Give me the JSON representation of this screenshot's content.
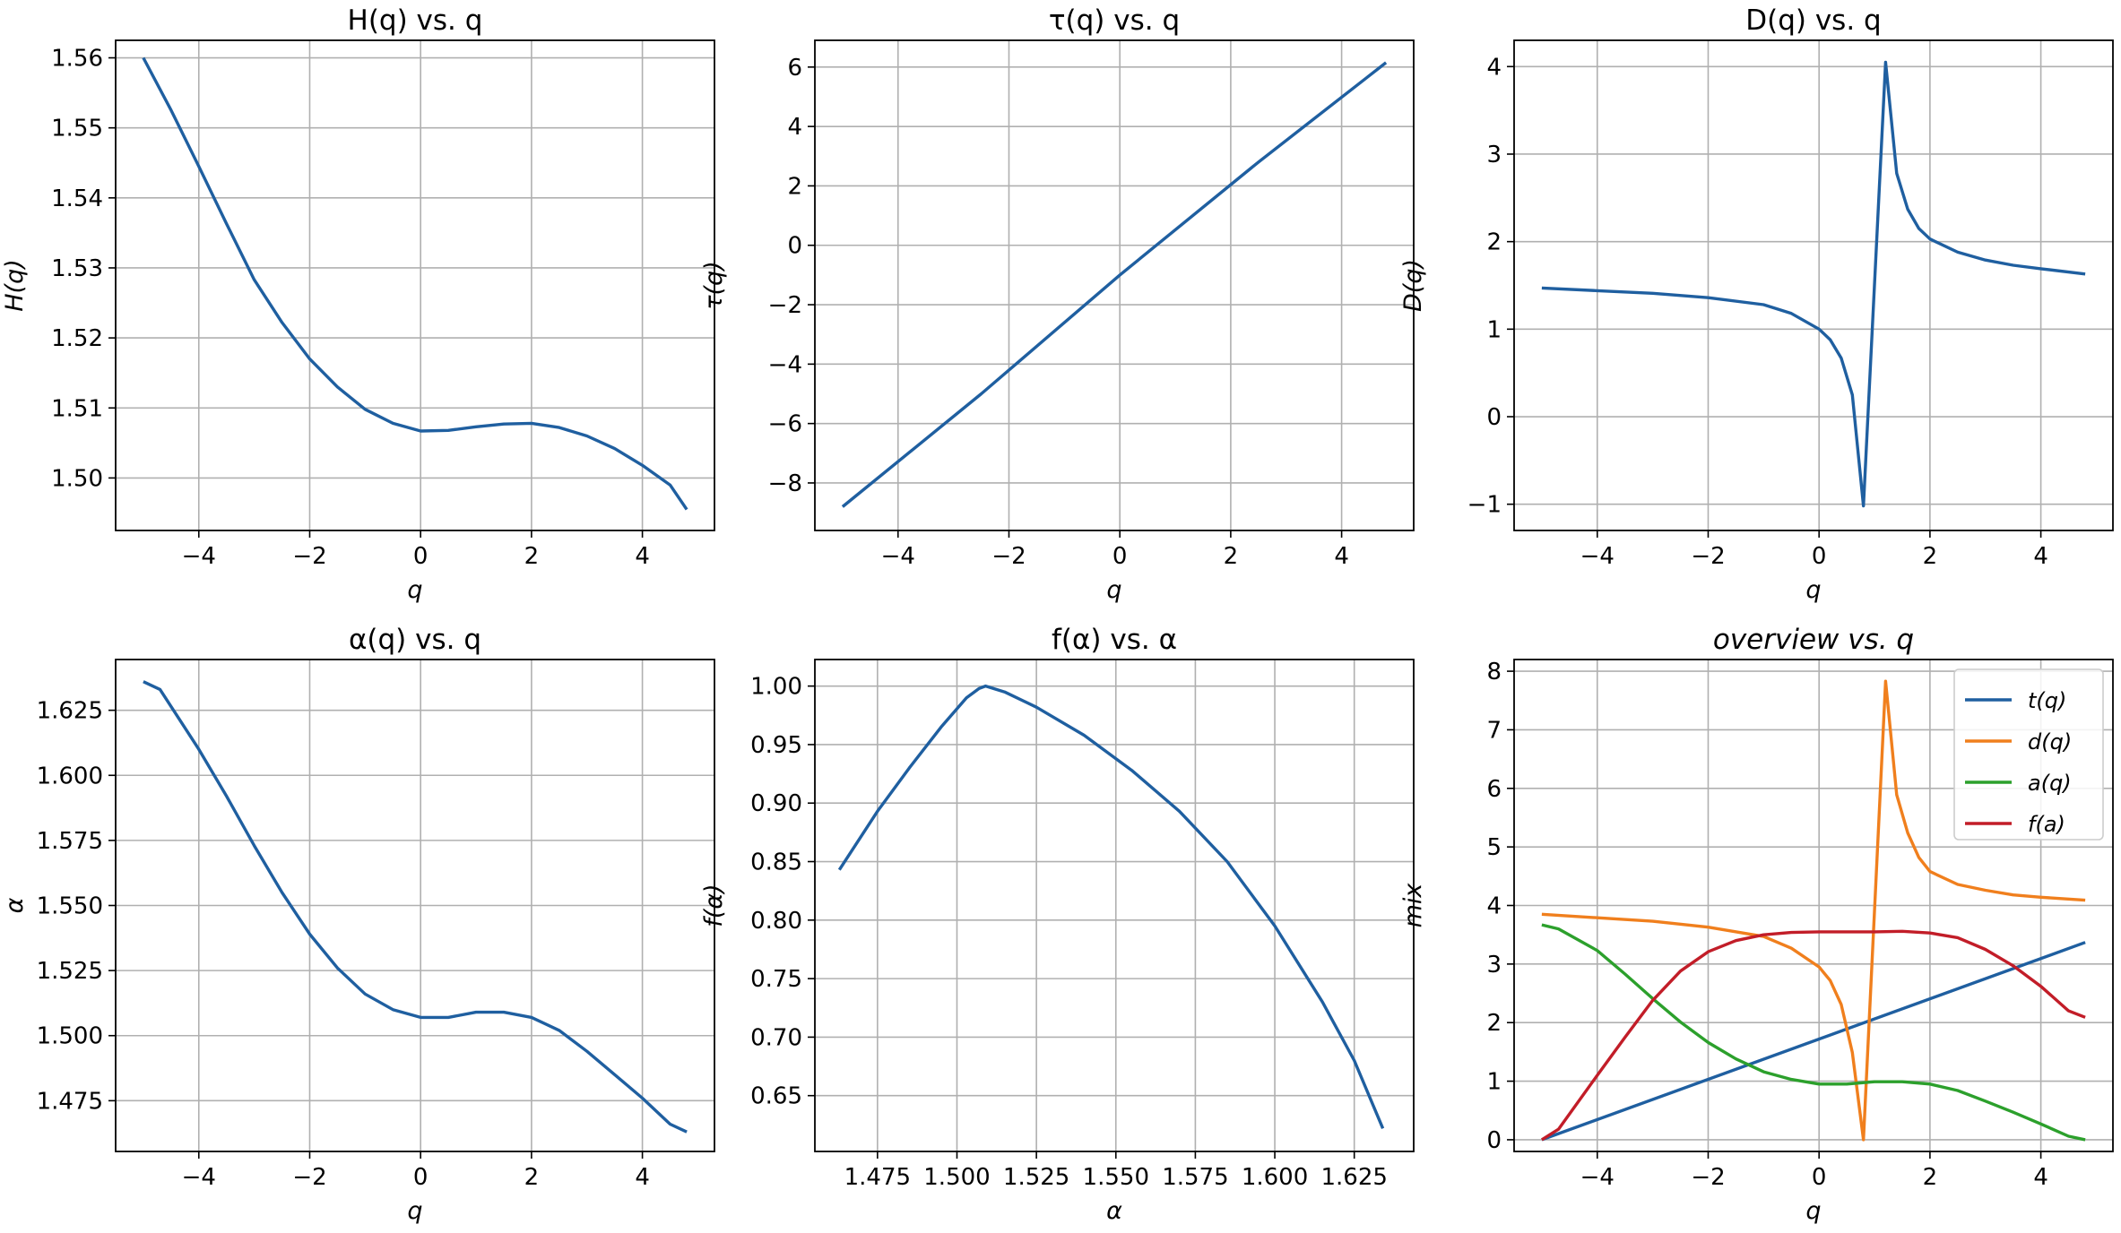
{
  "chart_data": [
    {
      "id": "H",
      "type": "line",
      "title": "H(q) vs. q",
      "xlabel": "q",
      "ylabel": "H(q)",
      "xlim": [
        -5.5,
        5.3
      ],
      "ylim": [
        1.4925,
        1.5625
      ],
      "xticks": [
        -4,
        -2,
        0,
        2,
        4
      ],
      "xticklabels": [
        "−4",
        "−2",
        "0",
        "2",
        "4"
      ],
      "yticks": [
        1.5,
        1.51,
        1.52,
        1.53,
        1.54,
        1.55,
        1.56
      ],
      "yticklabels": [
        "1.50",
        "1.51",
        "1.52",
        "1.53",
        "1.54",
        "1.55",
        "1.56"
      ],
      "grid": true,
      "series": [
        {
          "color": "#1f5fa0",
          "x": [
            -5,
            -4.5,
            -4,
            -3.5,
            -3,
            -2.5,
            -2,
            -1.5,
            -1,
            -0.5,
            0,
            0.5,
            1,
            1.5,
            2,
            2.5,
            3,
            3.5,
            4,
            4.5,
            4.8
          ],
          "y": [
            1.56,
            1.5525,
            1.5445,
            1.5363,
            1.5283,
            1.5222,
            1.517,
            1.513,
            1.5098,
            1.5078,
            1.5067,
            1.5068,
            1.5073,
            1.5077,
            1.5078,
            1.5072,
            1.506,
            1.5042,
            1.5018,
            1.499,
            1.4955
          ]
        }
      ]
    },
    {
      "id": "tau",
      "type": "line",
      "title": "τ(q) vs. q",
      "xlabel": "q",
      "ylabel": "τ(q)",
      "xlim": [
        -5.5,
        5.3
      ],
      "ylim": [
        -9.6,
        6.9
      ],
      "xticks": [
        -4,
        -2,
        0,
        2,
        4
      ],
      "xticklabels": [
        "−4",
        "−2",
        "0",
        "2",
        "4"
      ],
      "yticks": [
        -8,
        -6,
        -4,
        -2,
        0,
        2,
        4,
        6
      ],
      "yticklabels": [
        "−8",
        "−6",
        "−4",
        "−2",
        "0",
        "2",
        "4",
        "6"
      ],
      "grid": true,
      "series": [
        {
          "color": "#1f5fa0",
          "x": [
            -5,
            -2.5,
            0,
            2.5,
            4.8
          ],
          "y": [
            -8.8,
            -5.0,
            -1.0,
            2.8,
            6.15
          ]
        }
      ]
    },
    {
      "id": "D",
      "type": "line",
      "title": "D(q) vs. q",
      "xlabel": "q",
      "ylabel": "D(q)",
      "xlim": [
        -5.5,
        5.3
      ],
      "ylim": [
        -1.3,
        4.3
      ],
      "xticks": [
        -4,
        -2,
        0,
        2,
        4
      ],
      "xticklabels": [
        "−4",
        "−2",
        "0",
        "2",
        "4"
      ],
      "yticks": [
        -1,
        0,
        1,
        2,
        3,
        4
      ],
      "yticklabels": [
        "−1",
        "0",
        "1",
        "2",
        "3",
        "4"
      ],
      "grid": true,
      "series": [
        {
          "color": "#1f5fa0",
          "x": [
            -5,
            -4,
            -3,
            -2,
            -1,
            -0.5,
            0,
            0.2,
            0.4,
            0.6,
            0.8,
            1.2,
            1.4,
            1.6,
            1.8,
            2.0,
            2.5,
            3,
            3.5,
            4,
            4.8
          ],
          "y": [
            1.47,
            1.44,
            1.41,
            1.36,
            1.28,
            1.18,
            1.0,
            0.88,
            0.67,
            0.25,
            -1.02,
            4.05,
            2.78,
            2.37,
            2.15,
            2.03,
            1.88,
            1.79,
            1.73,
            1.69,
            1.63
          ]
        }
      ]
    },
    {
      "id": "alpha",
      "type": "line",
      "title": "α(q) vs. q",
      "xlabel": "q",
      "ylabel": "α",
      "xlim": [
        -5.5,
        5.3
      ],
      "ylim": [
        1.4555,
        1.6445
      ],
      "xticks": [
        -4,
        -2,
        0,
        2,
        4
      ],
      "xticklabels": [
        "−4",
        "−2",
        "0",
        "2",
        "4"
      ],
      "yticks": [
        1.475,
        1.5,
        1.525,
        1.55,
        1.575,
        1.6,
        1.625
      ],
      "yticklabels": [
        "1.475",
        "1.500",
        "1.525",
        "1.550",
        "1.575",
        "1.600",
        "1.625"
      ],
      "grid": true,
      "series": [
        {
          "color": "#1f5fa0",
          "x": [
            -5,
            -4.7,
            -4,
            -3.5,
            -3,
            -2.5,
            -2,
            -1.5,
            -1,
            -0.5,
            0,
            0.5,
            1,
            1.5,
            2,
            2.5,
            3,
            3.5,
            4,
            4.5,
            4.8
          ],
          "y": [
            1.636,
            1.633,
            1.61,
            1.592,
            1.573,
            1.555,
            1.539,
            1.526,
            1.516,
            1.51,
            1.507,
            1.507,
            1.509,
            1.509,
            1.507,
            1.502,
            1.494,
            1.485,
            1.476,
            1.466,
            1.463
          ]
        }
      ]
    },
    {
      "id": "f",
      "type": "line",
      "title": "f(α) vs. α",
      "xlabel": "α",
      "ylabel": "f(α)",
      "xlim": [
        1.4553,
        1.6437
      ],
      "ylim": [
        0.6023,
        1.0227
      ],
      "xticks": [
        1.475,
        1.5,
        1.525,
        1.55,
        1.575,
        1.6,
        1.625
      ],
      "xticklabels": [
        "1.475",
        "1.500",
        "1.525",
        "1.550",
        "1.575",
        "1.600",
        "1.625"
      ],
      "yticks": [
        0.65,
        0.7,
        0.75,
        0.8,
        0.85,
        0.9,
        0.95,
        1.0
      ],
      "yticklabels": [
        "0.65",
        "0.70",
        "0.75",
        "0.80",
        "0.85",
        "0.90",
        "0.95",
        "1.00"
      ],
      "grid": true,
      "series": [
        {
          "color": "#1f5fa0",
          "x": [
            1.463,
            1.475,
            1.485,
            1.495,
            1.503,
            1.507,
            1.509,
            1.515,
            1.525,
            1.54,
            1.555,
            1.57,
            1.585,
            1.6,
            1.615,
            1.625,
            1.634
          ],
          "y": [
            0.843,
            0.893,
            0.93,
            0.965,
            0.99,
            0.998,
            1.0,
            0.995,
            0.982,
            0.958,
            0.928,
            0.893,
            0.85,
            0.795,
            0.73,
            0.68,
            0.622
          ]
        }
      ]
    },
    {
      "id": "overview",
      "type": "line",
      "title": "overview vs. q",
      "xlabel": "q",
      "ylabel": "mix",
      "xlim": [
        -5.5,
        5.3
      ],
      "ylim": [
        -0.2,
        8.2
      ],
      "xticks": [
        -4,
        -2,
        0,
        2,
        4
      ],
      "xticklabels": [
        "−4",
        "−2",
        "0",
        "2",
        "4"
      ],
      "yticks": [
        0,
        1,
        2,
        3,
        4,
        5,
        6,
        7,
        8
      ],
      "yticklabels": [
        "0",
        "1",
        "2",
        "3",
        "4",
        "5",
        "6",
        "7",
        "8"
      ],
      "grid": true,
      "legend_position": "top-right",
      "series": [
        {
          "name": "t(q)",
          "color": "#1f5fa0",
          "x": [
            -5,
            4.8
          ],
          "y": [
            0.0,
            3.37
          ]
        },
        {
          "name": "d(q)",
          "color": "#f07f1d",
          "x": [
            -5,
            -4,
            -3,
            -2,
            -1,
            -0.5,
            0,
            0.2,
            0.4,
            0.6,
            0.8,
            1.2,
            1.4,
            1.6,
            1.8,
            2.0,
            2.5,
            3,
            3.5,
            4,
            4.8
          ],
          "y": [
            3.85,
            3.79,
            3.73,
            3.63,
            3.47,
            3.27,
            2.95,
            2.72,
            2.31,
            1.49,
            0.0,
            7.83,
            5.89,
            5.24,
            4.82,
            4.58,
            4.36,
            4.26,
            4.18,
            4.14,
            4.09
          ]
        },
        {
          "name": "a(q)",
          "color": "#2ca02c",
          "x": [
            -5,
            -4.7,
            -4,
            -3.5,
            -3,
            -2.5,
            -2,
            -1.5,
            -1,
            -0.5,
            0,
            0.5,
            1,
            1.5,
            2,
            2.5,
            3,
            3.5,
            4,
            4.5,
            4.8
          ],
          "y": [
            3.67,
            3.6,
            3.23,
            2.83,
            2.41,
            2.01,
            1.66,
            1.38,
            1.16,
            1.03,
            0.95,
            0.95,
            0.99,
            0.99,
            0.95,
            0.84,
            0.66,
            0.47,
            0.27,
            0.06,
            0.0
          ]
        },
        {
          "name": "f(a)",
          "color": "#c21d28",
          "x": [
            -5,
            -4.7,
            -4,
            -3.5,
            -3,
            -2.5,
            -2,
            -1.5,
            -1,
            -0.5,
            0,
            0.5,
            1,
            1.5,
            2,
            2.5,
            3,
            3.5,
            4,
            4.5,
            4.8
          ],
          "y": [
            0.0,
            0.18,
            1.1,
            1.75,
            2.38,
            2.88,
            3.21,
            3.4,
            3.5,
            3.54,
            3.55,
            3.55,
            3.55,
            3.56,
            3.53,
            3.45,
            3.25,
            2.97,
            2.62,
            2.2,
            2.09
          ]
        }
      ]
    }
  ]
}
